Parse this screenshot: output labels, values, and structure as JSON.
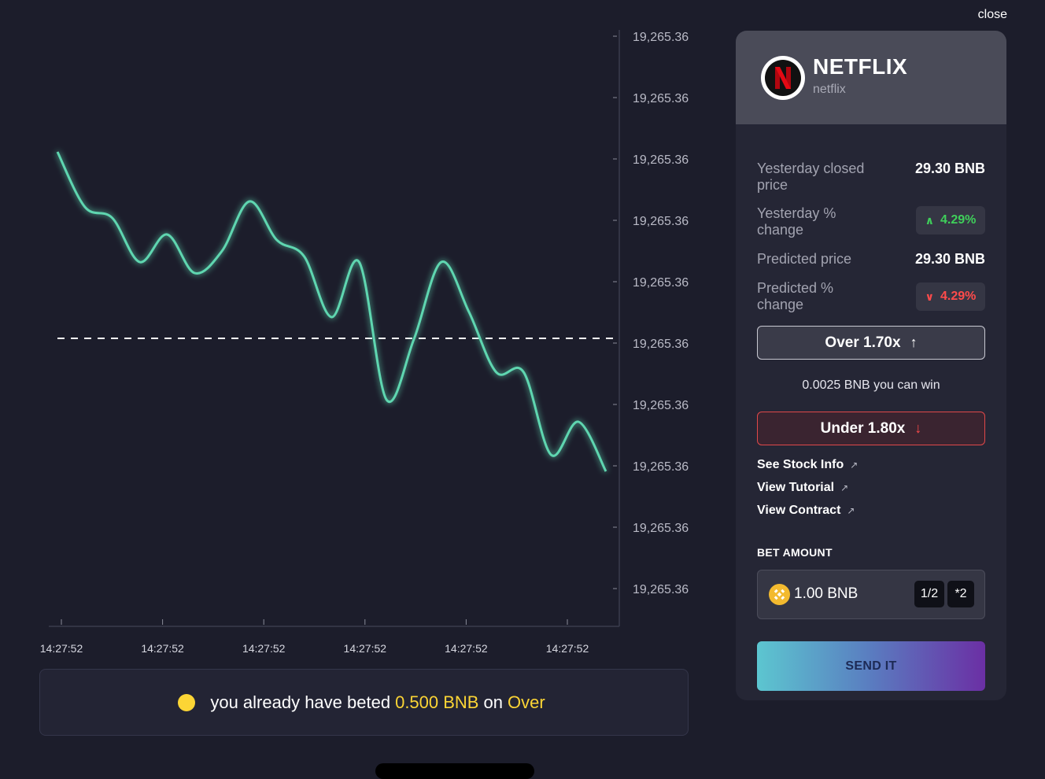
{
  "close_label": "close",
  "chart_data": {
    "type": "line",
    "title": "",
    "xlabel": "",
    "ylabel": "",
    "x_tick_labels": [
      "14:27:52",
      "14:27:52",
      "14:27:52",
      "14:27:52",
      "14:27:52",
      "14:27:52"
    ],
    "y_tick_labels": [
      "19,265.36",
      "19,265.36",
      "19,265.36",
      "19,265.36",
      "19,265.36",
      "19,265.36",
      "19,265.36",
      "19,265.36",
      "19,265.36",
      "19,265.36"
    ],
    "reference_line": "dashed horizontal at the 6th tick from the top",
    "series": [
      {
        "color": "#5ed6b0",
        "values": [
          0.79,
          0.69,
          0.67,
          0.59,
          0.64,
          0.57,
          0.61,
          0.7,
          0.63,
          0.6,
          0.49,
          0.59,
          0.34,
          0.45,
          0.59,
          0.5,
          0.39,
          0.39,
          0.24,
          0.3,
          0.21
        ]
      }
    ],
    "grid": false
  },
  "bet_info": {
    "prefix": "you already have beted",
    "amount": "0.500 BNB",
    "middle": "on",
    "side": "Over"
  },
  "panel": {
    "brand_name": "NETFLIX",
    "brand_sub": "netflix",
    "logo_letter": "N",
    "rows": {
      "y_closed_label": "Yesterday closed price",
      "y_closed_value": "29.30 BNB",
      "y_change_label": "Yesterday % change",
      "y_change_value": "4.29%",
      "pred_price_label": "Predicted price",
      "pred_price_value": "29.30 BNB",
      "pred_change_label": "Predicted % change",
      "pred_change_value": "4.29%"
    },
    "over_label": "Over 1.70x",
    "win_text": "0.0025 BNB you can win",
    "under_label": "Under 1.80x",
    "links": [
      "See Stock Info",
      "View Tutorial",
      "View Contract"
    ],
    "bet_amount_label": "BET AMOUNT",
    "bet_amount_value": "1.00 BNB",
    "half_label": "1/2",
    "double_label": "*2",
    "send_label": "SEND IT"
  },
  "colors": {
    "background": "#1c1d2b",
    "line": "#5ed6b0",
    "accent_yellow": "#fcd535",
    "up_green": "#3fcf5a",
    "down_red": "#ff4b4b"
  }
}
